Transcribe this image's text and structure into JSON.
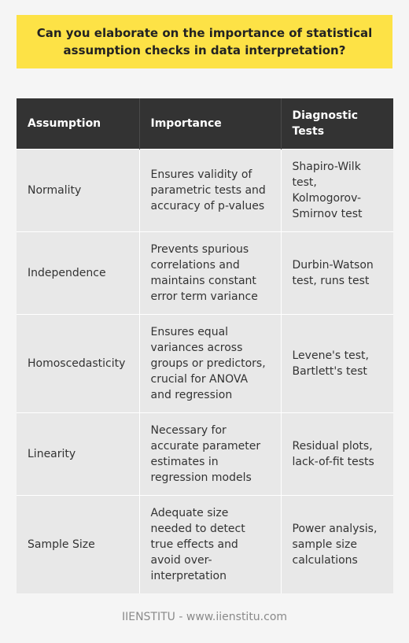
{
  "title": "Can you elaborate on the importance of statistical assumption checks in data interpretation?",
  "table": {
    "headers": [
      "Assumption",
      "Importance",
      "Diagnostic Tests"
    ],
    "rows": [
      [
        "Normality",
        "Ensures validity of parametric tests and accuracy of p-values",
        "Shapiro-Wilk test, Kolmogorov-Smirnov test"
      ],
      [
        "Independence",
        "Prevents spurious correlations and maintains constant error term variance",
        "Durbin-Watson test, runs test"
      ],
      [
        "Homoscedasticity",
        "Ensures equal variances across groups or predictors, crucial for ANOVA and regression",
        "Levene's test, Bartlett's test"
      ],
      [
        "Linearity",
        "Necessary for accurate parameter estimates in regression models",
        "Residual plots, lack-of-fit tests"
      ],
      [
        "Sample Size",
        "Adequate size needed to detect true effects and avoid over-interpretation",
        "Power analysis, sample size calculations"
      ]
    ]
  },
  "footer": "IIENSTITU - www.iienstitu.com",
  "colors": {
    "title_background": "#fde246",
    "header_background": "#333333",
    "cell_background": "#e8e8e8",
    "page_background": "#f5f5f5"
  }
}
